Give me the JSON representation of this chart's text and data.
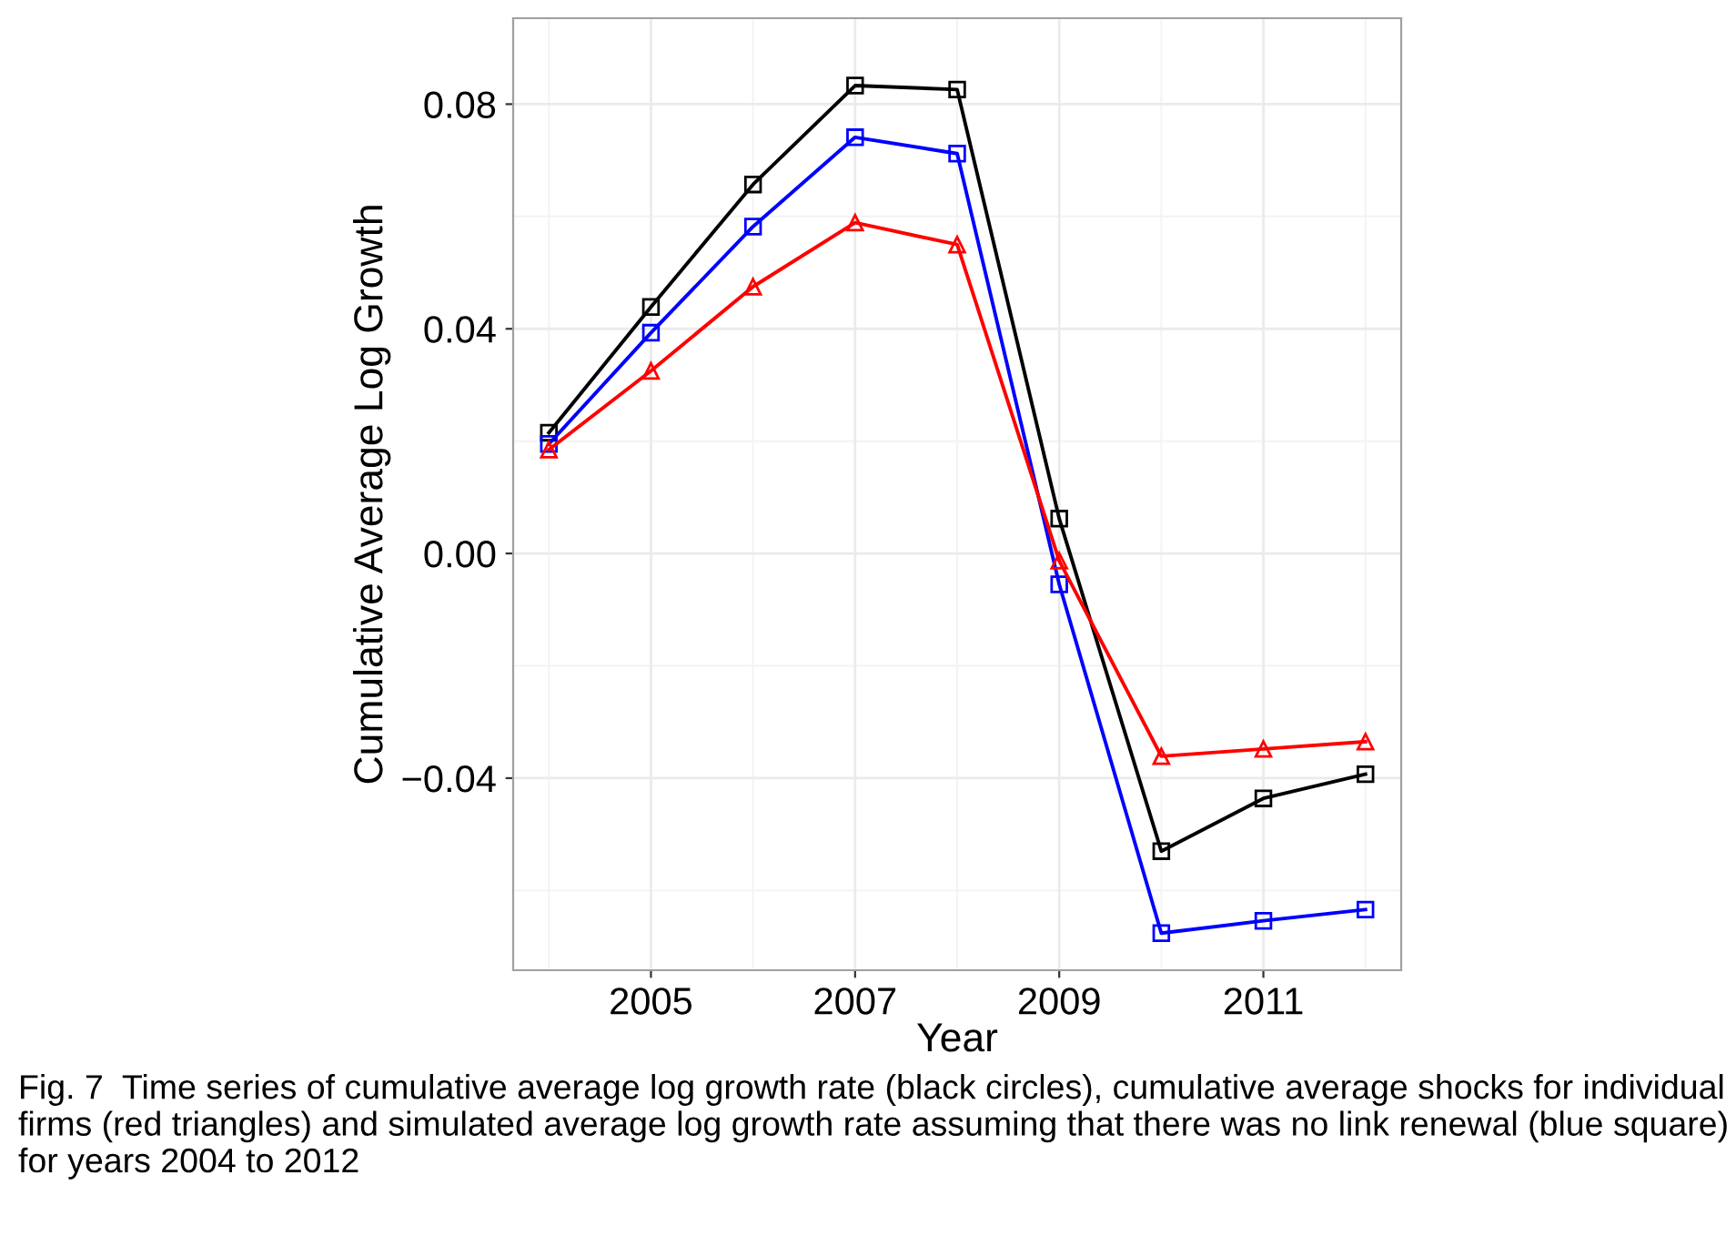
{
  "chart_data": {
    "type": "line",
    "xlabel": "Year",
    "ylabel": "Cumulative Average Log Growth",
    "x": [
      2004,
      2005,
      2006,
      2007,
      2008,
      2009,
      2010,
      2011,
      2012
    ],
    "series": [
      {
        "color": "#000000",
        "marker": "square",
        "values": [
          0.0215,
          0.0439,
          0.0657,
          0.0833,
          0.0826,
          0.0062,
          -0.053,
          -0.0436,
          -0.0393
        ]
      },
      {
        "color": "#0000ff",
        "marker": "square",
        "values": [
          0.0195,
          0.0393,
          0.0582,
          0.0741,
          0.0712,
          -0.0055,
          -0.0676,
          -0.0654,
          -0.0634
        ]
      },
      {
        "color": "#ff0000",
        "marker": "triangle",
        "values": [
          0.0185,
          0.0325,
          0.0475,
          0.0589,
          0.055,
          -0.0013,
          -0.0361,
          -0.0348,
          -0.0335
        ]
      }
    ],
    "xlim": [
      2003.65,
      2012.35
    ],
    "xticks": [
      2005,
      2007,
      2009,
      2011
    ],
    "ylim": [
      -0.0742,
      0.0953
    ],
    "yticks": [
      {
        "value": -0.04,
        "label": "−0.04"
      },
      {
        "value": 0.0,
        "label": "0.00"
      },
      {
        "value": 0.04,
        "label": "0.04"
      },
      {
        "value": 0.08,
        "label": "0.08"
      }
    ],
    "grid": true,
    "line_style": "solid",
    "annotations": [
      "Fig. 7  Time series of cumulative average log growth rate (black circles), cumulative average shocks for individual firms (red triangles) and simulated average log growth rate assuming that there was no link renewal (blue square) for years 2004 to 2012"
    ]
  }
}
